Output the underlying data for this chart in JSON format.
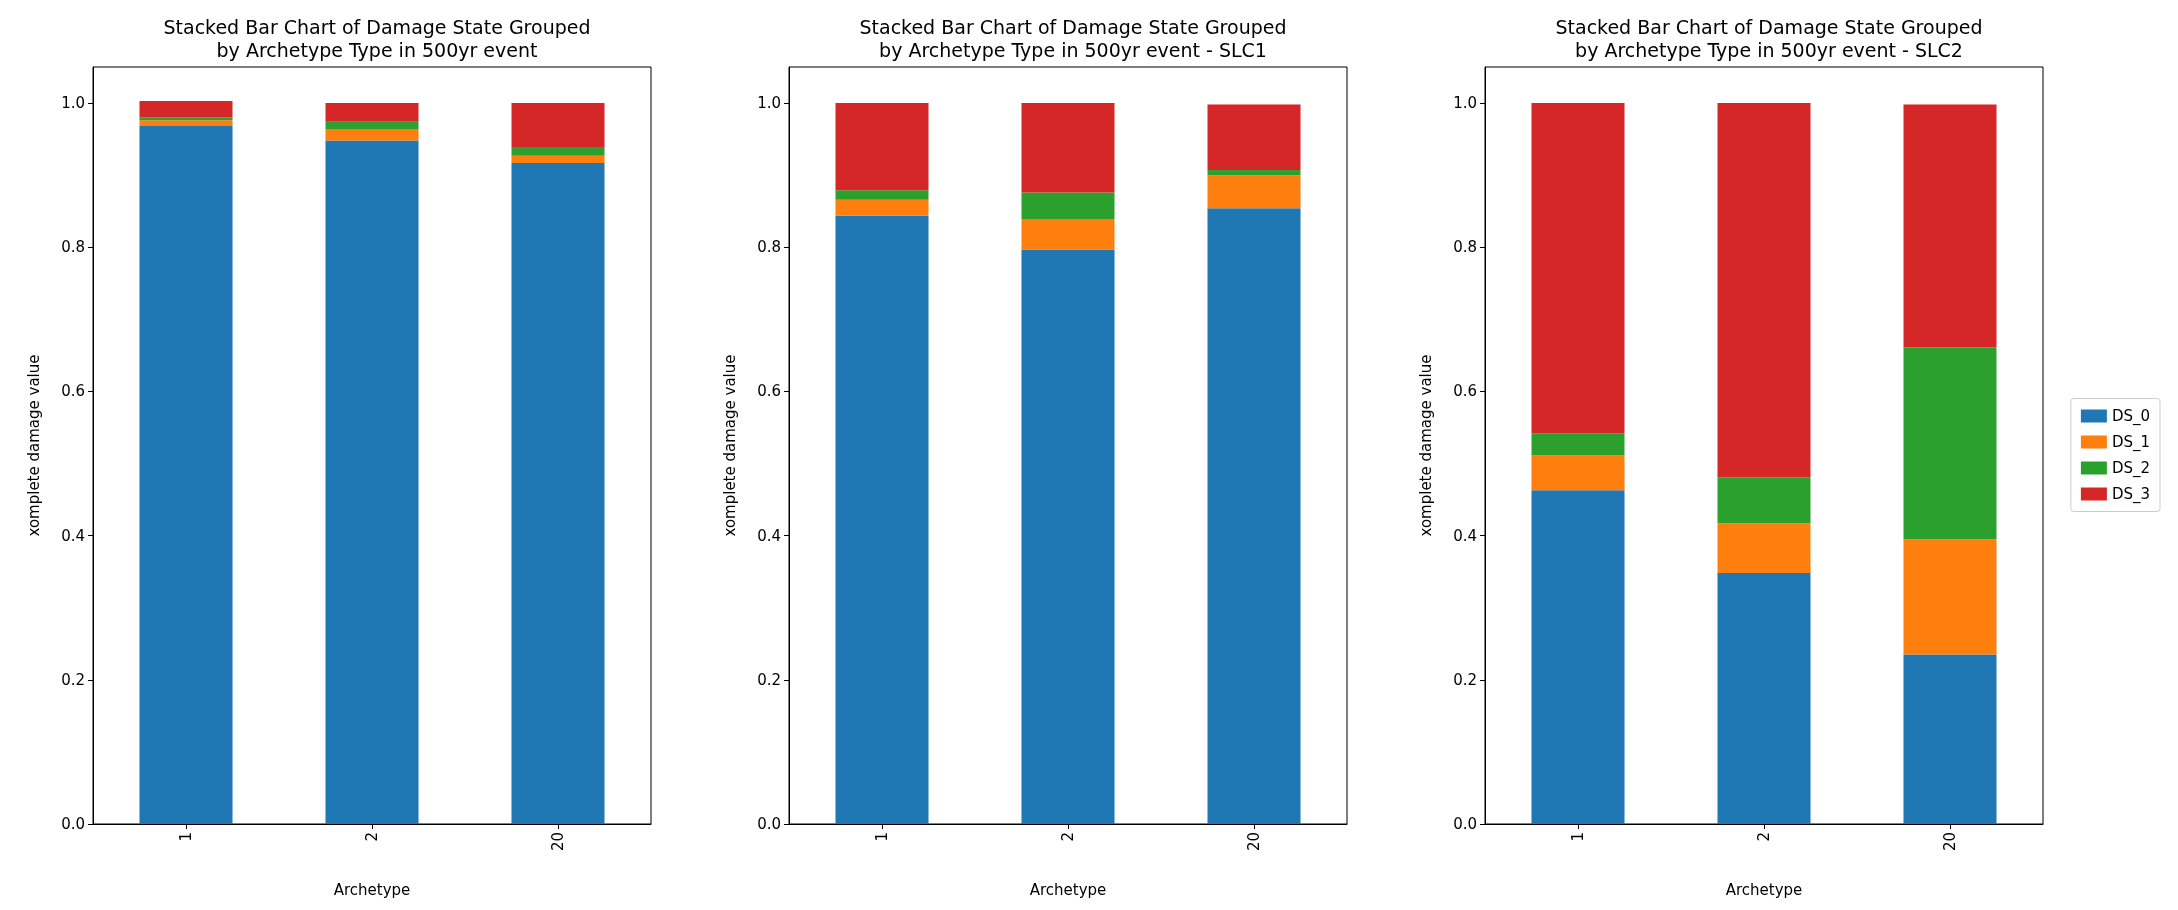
{
  "chart_data": [
    {
      "type": "bar",
      "title": "Stacked Bar Chart of Damage State Grouped\nby Archetype Type in 500yr event",
      "xlabel": "Archetype",
      "ylabel": "xomplete damage value",
      "categories": [
        "1",
        "2",
        "20"
      ],
      "stacked": true,
      "ylim": [
        0,
        1.05
      ],
      "yticks": [
        {
          "value": 0,
          "label": "0.0"
        },
        {
          "value": 0.2,
          "label": "0.2"
        },
        {
          "value": 0.4,
          "label": "0.4"
        },
        {
          "value": 0.6,
          "label": "0.6"
        },
        {
          "value": 0.8,
          "label": "0.8"
        },
        {
          "value": 1,
          "label": "1.0"
        }
      ],
      "grid": false,
      "legend": false,
      "series": [
        {
          "color": "#1f77b4",
          "values": [
            0.968,
            0.948,
            0.917
          ]
        },
        {
          "color": "#ff7f0e",
          "values": [
            0.008,
            0.016,
            0.01
          ]
        },
        {
          "color": "#2ca02c",
          "values": [
            0.004,
            0.01,
            0.012
          ]
        },
        {
          "color": "#d62728",
          "values": [
            0.023,
            0.026,
            0.061
          ]
        }
      ]
    },
    {
      "type": "bar",
      "title": "Stacked Bar Chart of Damage State Grouped\nby Archetype Type in 500yr event - SLC1",
      "xlabel": "Archetype",
      "ylabel": "xomplete damage value",
      "categories": [
        "1",
        "2",
        "20"
      ],
      "stacked": true,
      "ylim": [
        0,
        1.05
      ],
      "yticks": [
        {
          "value": 0,
          "label": "0.0"
        },
        {
          "value": 0.2,
          "label": "0.2"
        },
        {
          "value": 0.4,
          "label": "0.4"
        },
        {
          "value": 0.6,
          "label": "0.6"
        },
        {
          "value": 0.8,
          "label": "0.8"
        },
        {
          "value": 1,
          "label": "1.0"
        }
      ],
      "grid": false,
      "legend": false,
      "series": [
        {
          "color": "#1f77b4",
          "values": [
            0.844,
            0.797,
            0.854
          ]
        },
        {
          "color": "#ff7f0e",
          "values": [
            0.022,
            0.042,
            0.046
          ]
        },
        {
          "color": "#2ca02c",
          "values": [
            0.013,
            0.037,
            0.007
          ]
        },
        {
          "color": "#d62728",
          "values": [
            0.121,
            0.124,
            0.091
          ]
        }
      ]
    },
    {
      "type": "bar",
      "title": "Stacked Bar Chart of Damage State Grouped\nby Archetype Type in 500yr event - SLC2",
      "xlabel": "Archetype",
      "ylabel": "xomplete damage value",
      "categories": [
        "1",
        "2",
        "20"
      ],
      "stacked": true,
      "ylim": [
        0,
        1.05
      ],
      "yticks": [
        {
          "value": 0,
          "label": "0.0"
        },
        {
          "value": 0.2,
          "label": "0.2"
        },
        {
          "value": 0.4,
          "label": "0.4"
        },
        {
          "value": 0.6,
          "label": "0.6"
        },
        {
          "value": 0.8,
          "label": "0.8"
        },
        {
          "value": 1,
          "label": "1.0"
        }
      ],
      "grid": false,
      "legend": "right",
      "series": [
        {
          "name": "DS_0",
          "color": "#1f77b4",
          "values": [
            0.463,
            0.348,
            0.235
          ]
        },
        {
          "name": "DS_1",
          "color": "#ff7f0e",
          "values": [
            0.048,
            0.069,
            0.16
          ]
        },
        {
          "name": "DS_2",
          "color": "#2ca02c",
          "values": [
            0.031,
            0.064,
            0.266
          ]
        },
        {
          "name": "DS_3",
          "color": "#d62728",
          "values": [
            0.458,
            0.519,
            0.337
          ]
        }
      ]
    }
  ]
}
